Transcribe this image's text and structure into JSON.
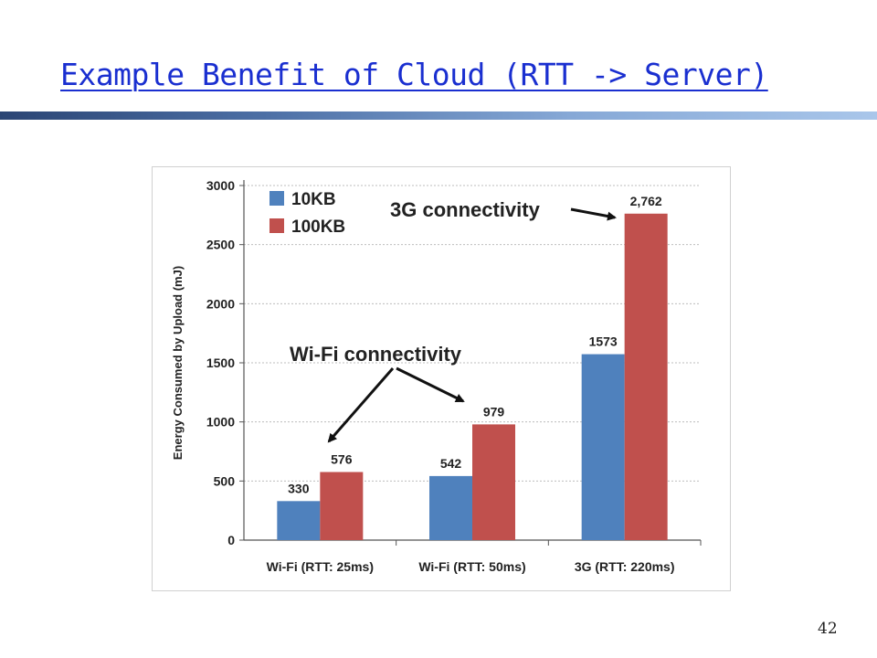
{
  "slide": {
    "title": "Example Benefit of Cloud (RTT -> Server)",
    "page_number": "42"
  },
  "colors": {
    "title": "#1a2fd0",
    "series_10kb": "#4f81bd",
    "series_100kb": "#c0504d"
  },
  "chart_data": {
    "type": "bar",
    "title": "",
    "xlabel": "",
    "ylabel": "Energy Consumed by Upload (mJ)",
    "categories": [
      "Wi-Fi (RTT: 25ms)",
      "Wi-Fi (RTT: 50ms)",
      "3G (RTT: 220ms)"
    ],
    "series": [
      {
        "name": "10KB",
        "color": "#4f81bd",
        "values": [
          330,
          542,
          1573
        ],
        "labels": [
          "330",
          "542",
          "1573"
        ]
      },
      {
        "name": "100KB",
        "color": "#c0504d",
        "values": [
          576,
          979,
          2762
        ],
        "labels": [
          "576",
          "979",
          "2,762"
        ]
      }
    ],
    "ylim": [
      0,
      3000
    ],
    "yticks": [
      0,
      500,
      1000,
      1500,
      2000,
      2500,
      3000
    ],
    "grid": true,
    "legend": "top-left",
    "annotations": [
      {
        "text": "3G connectivity",
        "points_to": "3G (RTT: 220ms) / 100KB"
      },
      {
        "text": "Wi-Fi connectivity",
        "points_to": "Wi-Fi (RTT: 25ms) / 100KB; Wi-Fi (RTT: 50ms) / 100KB"
      }
    ]
  }
}
